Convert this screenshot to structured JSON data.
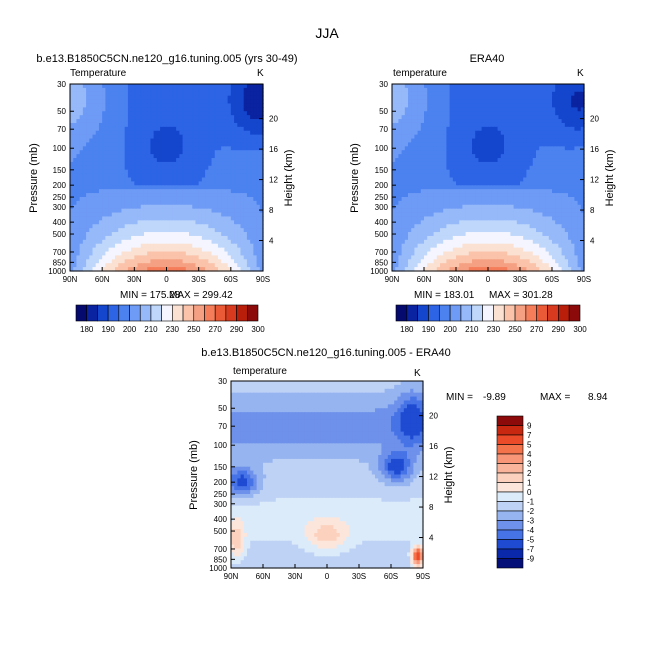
{
  "page_title": "JJA",
  "chart_data": [
    {
      "type": "heatmap",
      "title": "b.e13.B1850C5CN.ne120_g16.tuning.005 (yrs 30-49)",
      "subtitle": "Temperature",
      "units": "K",
      "ylabel": "Pressure (mb)",
      "y2label": "Height (km)",
      "x_ticks": [
        "90N",
        "60N",
        "30N",
        "0",
        "30S",
        "60S",
        "90S"
      ],
      "y_ticks": [
        "30",
        "50",
        "70",
        "100",
        "150",
        "200",
        "250",
        "300",
        "400",
        "500",
        "700",
        "850",
        "1000"
      ],
      "y2_ticks": [
        "20",
        "16",
        "12",
        "8",
        "4"
      ],
      "min_label": "MIN = 175.28",
      "max_label": "MAX = 299.42",
      "colorbar_labels": [
        "180",
        "190",
        "200",
        "210",
        "230",
        "250",
        "270",
        "290",
        "300"
      ],
      "colorbar_colors": [
        "#050a6e",
        "#0a23a0",
        "#1446cd",
        "#2d64e6",
        "#4b82f0",
        "#6e9bf5",
        "#96b9fa",
        "#bed7fa",
        "#f5f5ff",
        "#fae1d2",
        "#fac3aa",
        "#f5a082",
        "#f57d5a",
        "#eb5a37",
        "#d73a1e",
        "#b91e0a",
        "#8c0a0a"
      ],
      "levels": [
        180,
        190,
        200,
        210,
        220,
        230,
        240,
        250,
        260,
        270,
        280,
        290,
        300
      ],
      "ylim": [
        1000,
        30
      ],
      "grid": false,
      "legend": "bottom"
    },
    {
      "type": "heatmap",
      "title": "ERA40",
      "subtitle": "temperature",
      "units": "K",
      "ylabel": "Pressure (mb)",
      "y2label": "Height (km)",
      "x_ticks": [
        "90N",
        "60N",
        "30N",
        "0",
        "30S",
        "60S",
        "90S"
      ],
      "y_ticks": [
        "30",
        "50",
        "70",
        "100",
        "150",
        "200",
        "250",
        "300",
        "400",
        "500",
        "700",
        "850",
        "1000"
      ],
      "y2_ticks": [
        "20",
        "16",
        "12",
        "8",
        "4"
      ],
      "min_label": "MIN = 183.01",
      "max_label": "MAX = 301.28",
      "colorbar_labels": [
        "180",
        "190",
        "200",
        "210",
        "230",
        "250",
        "270",
        "290",
        "300"
      ],
      "colorbar_colors": [
        "#050a6e",
        "#0a23a0",
        "#1446cd",
        "#2d64e6",
        "#4b82f0",
        "#6e9bf5",
        "#96b9fa",
        "#bed7fa",
        "#f5f5ff",
        "#fae1d2",
        "#fac3aa",
        "#f5a082",
        "#f57d5a",
        "#eb5a37",
        "#d73a1e",
        "#b91e0a",
        "#8c0a0a"
      ],
      "levels": [
        180,
        190,
        200,
        210,
        220,
        230,
        240,
        250,
        260,
        270,
        280,
        290,
        300
      ],
      "ylim": [
        1000,
        30
      ],
      "grid": false,
      "legend": "bottom"
    },
    {
      "type": "heatmap",
      "title": "b.e13.B1850C5CN.ne120_g16.tuning.005 - ERA40",
      "subtitle": "temperature",
      "units": "K",
      "ylabel": "Pressure (mb)",
      "y2label": "Height (km)",
      "x_ticks": [
        "90N",
        "60N",
        "30N",
        "0",
        "30S",
        "60S",
        "90S"
      ],
      "y_ticks": [
        "30",
        "50",
        "70",
        "100",
        "150",
        "200",
        "250",
        "300",
        "400",
        "500",
        "700",
        "850",
        "1000"
      ],
      "y2_ticks": [
        "20",
        "16",
        "12",
        "8",
        "4"
      ],
      "min_label": "MIN =",
      "min_value": "-9.89",
      "max_label": "MAX =",
      "max_value": "8.94",
      "colorbar_labels": [
        "9",
        "7",
        "5",
        "4",
        "3",
        "2",
        "1",
        "0",
        "-1",
        "-2",
        "-3",
        "-4",
        "-5",
        "-7",
        "-9"
      ],
      "colorbar_colors": [
        "#8c0a0a",
        "#c8280f",
        "#eb4b28",
        "#f5734b",
        "#fa9678",
        "#fab49b",
        "#fcd2be",
        "#fce6dc",
        "#dcebfa",
        "#bed2f5",
        "#96b4f0",
        "#6e91eb",
        "#4673e6",
        "#1e4bd2",
        "#0a28aa",
        "#050f78"
      ],
      "levels": [
        -9,
        -7,
        -5,
        -4,
        -3,
        -2,
        -1,
        0,
        1,
        2,
        3,
        4,
        5,
        7,
        9
      ],
      "ylim": [
        1000,
        30
      ],
      "grid": false,
      "legend": "right"
    }
  ]
}
